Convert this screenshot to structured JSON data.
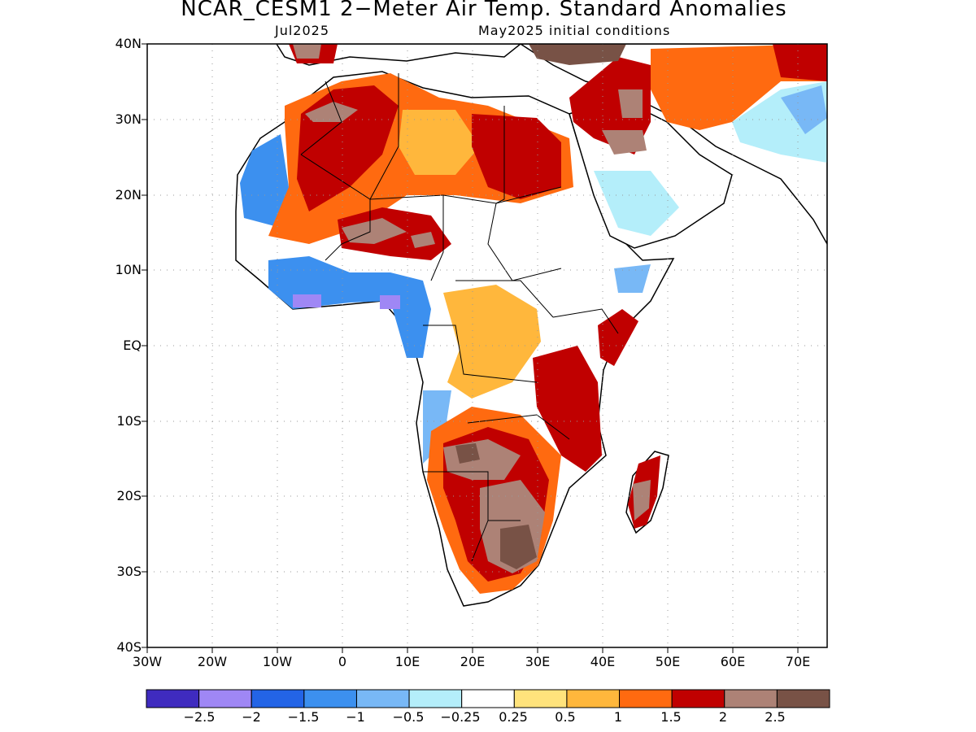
{
  "title": "NCAR_CESM1 2−Meter Air Temp. Standard Anomalies",
  "subtitle_left": "Jul2025",
  "subtitle_right": "May2025 initial conditions",
  "map": {
    "lat_labels": [
      "40N",
      "30N",
      "20N",
      "10N",
      "EQ",
      "10S",
      "20S",
      "30S",
      "40S"
    ],
    "lon_labels": [
      "30W",
      "20W",
      "10W",
      "0",
      "10E",
      "20E",
      "30E",
      "40E",
      "50E",
      "60E",
      "70E"
    ],
    "lon_range": [
      -30,
      75
    ],
    "lat_range": [
      -40,
      40
    ]
  },
  "colorbar": {
    "labels": [
      "−2.5",
      "−2",
      "−1.5",
      "−1",
      "−0.5",
      "−0.25",
      "0.25",
      "0.5",
      "1",
      "1.5",
      "2",
      "2.5"
    ],
    "colors": [
      "#3f2bbf",
      "#9f87f5",
      "#2364e6",
      "#3c90ef",
      "#78b8f6",
      "#b4eefa",
      "#ffffff",
      "#ffe37c",
      "#ffb73c",
      "#ff6a10",
      "#c00000",
      "#ad8276",
      "#785246"
    ]
  }
}
